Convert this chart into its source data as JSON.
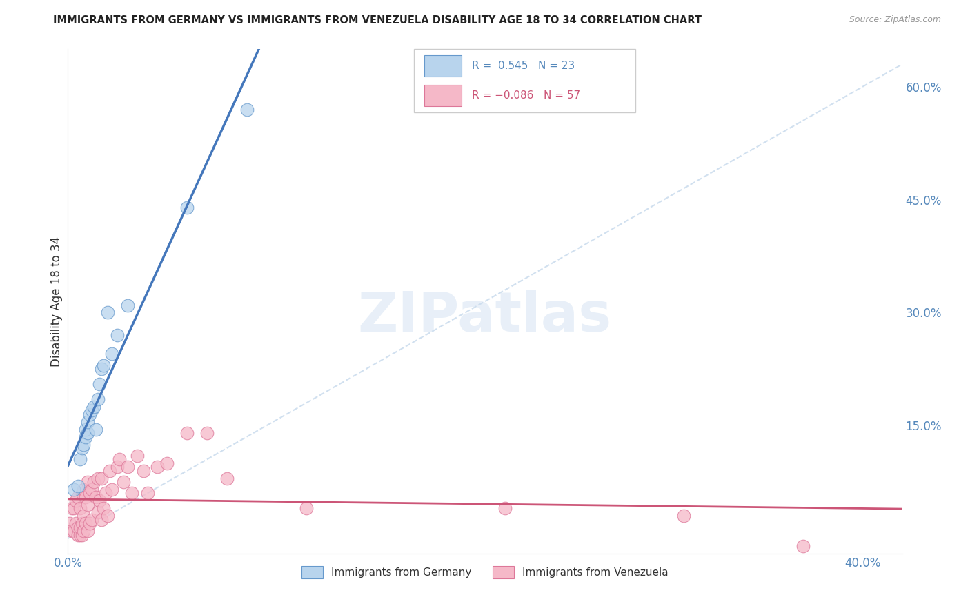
{
  "title": "IMMIGRANTS FROM GERMANY VS IMMIGRANTS FROM VENEZUELA DISABILITY AGE 18 TO 34 CORRELATION CHART",
  "source": "Source: ZipAtlas.com",
  "xlim": [
    0.0,
    0.42
  ],
  "ylim": [
    -0.02,
    0.65
  ],
  "xlabel_tick_vals": [
    0.0,
    0.1,
    0.2,
    0.3,
    0.4
  ],
  "xlabel_ticks": [
    "0.0%",
    "",
    "",
    "",
    "40.0%"
  ],
  "ylabel_tick_vals": [
    0.0,
    0.15,
    0.3,
    0.45,
    0.6
  ],
  "ylabel_ticks": [
    "",
    "15.0%",
    "30.0%",
    "45.0%",
    "60.0%"
  ],
  "ylabel": "Disability Age 18 to 34",
  "germany_R": 0.545,
  "germany_N": 23,
  "venezuela_R": -0.086,
  "venezuela_N": 57,
  "germany_color": "#b8d4ed",
  "germany_edge_color": "#6699cc",
  "germany_line_color": "#4477bb",
  "venezuela_color": "#f5b8c8",
  "venezuela_edge_color": "#dd7799",
  "venezuela_line_color": "#cc5577",
  "diagonal_line_color": "#ccddee",
  "watermark": "ZIPatlas",
  "germany_x": [
    0.003,
    0.005,
    0.006,
    0.007,
    0.008,
    0.009,
    0.009,
    0.01,
    0.01,
    0.011,
    0.012,
    0.013,
    0.014,
    0.015,
    0.016,
    0.017,
    0.018,
    0.02,
    0.022,
    0.025,
    0.03,
    0.06,
    0.09
  ],
  "germany_y": [
    0.065,
    0.07,
    0.105,
    0.12,
    0.125,
    0.135,
    0.145,
    0.14,
    0.155,
    0.165,
    0.17,
    0.175,
    0.145,
    0.185,
    0.205,
    0.225,
    0.23,
    0.3,
    0.245,
    0.27,
    0.31,
    0.44,
    0.57
  ],
  "venezuela_x": [
    0.001,
    0.002,
    0.002,
    0.003,
    0.003,
    0.004,
    0.004,
    0.005,
    0.005,
    0.005,
    0.006,
    0.006,
    0.006,
    0.007,
    0.007,
    0.007,
    0.008,
    0.008,
    0.008,
    0.009,
    0.009,
    0.01,
    0.01,
    0.01,
    0.011,
    0.011,
    0.012,
    0.012,
    0.013,
    0.014,
    0.015,
    0.015,
    0.016,
    0.017,
    0.017,
    0.018,
    0.019,
    0.02,
    0.021,
    0.022,
    0.025,
    0.026,
    0.028,
    0.03,
    0.032,
    0.035,
    0.038,
    0.04,
    0.045,
    0.05,
    0.06,
    0.07,
    0.08,
    0.12,
    0.22,
    0.31,
    0.37
  ],
  "venezuela_y": [
    0.02,
    0.01,
    0.04,
    0.01,
    0.04,
    0.02,
    0.05,
    0.005,
    0.015,
    0.055,
    0.005,
    0.015,
    0.04,
    0.005,
    0.02,
    0.06,
    0.01,
    0.03,
    0.065,
    0.02,
    0.055,
    0.01,
    0.045,
    0.075,
    0.02,
    0.06,
    0.025,
    0.065,
    0.075,
    0.055,
    0.035,
    0.08,
    0.05,
    0.025,
    0.08,
    0.04,
    0.06,
    0.03,
    0.09,
    0.065,
    0.095,
    0.105,
    0.075,
    0.095,
    0.06,
    0.11,
    0.09,
    0.06,
    0.095,
    0.1,
    0.14,
    0.14,
    0.08,
    0.04,
    0.04,
    0.03,
    -0.01
  ]
}
